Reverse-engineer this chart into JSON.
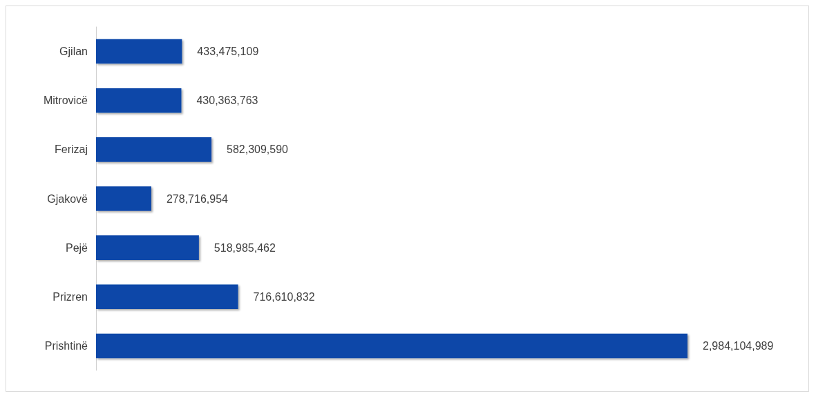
{
  "chart_data": {
    "type": "bar",
    "orientation": "horizontal",
    "categories": [
      "Gjilan",
      "Mitrovicë",
      "Ferizaj",
      "Gjakovë",
      "Pejë",
      "Prizren",
      "Prishtinë"
    ],
    "values": [
      433475109,
      430363763,
      582309590,
      278716954,
      518985462,
      716610832,
      2984104989
    ],
    "value_labels": [
      "433,475,109",
      "430,363,763",
      "582,309,590",
      "278,716,954",
      "518,985,462",
      "716,610,832",
      "2,984,104,989"
    ],
    "color": "#0a47a8",
    "grid": false
  }
}
